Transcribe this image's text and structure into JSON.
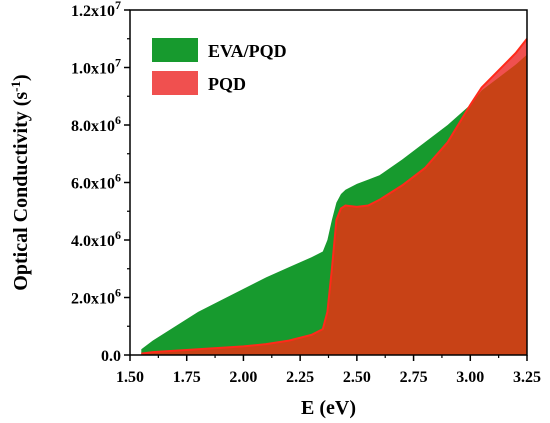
{
  "chart_data": {
    "type": "area",
    "xlabel": "E (eV)",
    "ylabel": {
      "main": "Optical Conductivity (s",
      "sup": "-1",
      "close": ")"
    },
    "xlim": [
      1.5,
      3.25
    ],
    "ylim": [
      0,
      12000000
    ],
    "x_ticks": [
      {
        "value": 1.5,
        "label": "1.50"
      },
      {
        "value": 1.75,
        "label": "1.75"
      },
      {
        "value": 2.0,
        "label": "2.00"
      },
      {
        "value": 2.25,
        "label": "2.25"
      },
      {
        "value": 2.5,
        "label": "2.50"
      },
      {
        "value": 2.75,
        "label": "2.75"
      },
      {
        "value": 3.0,
        "label": "3.00"
      },
      {
        "value": 3.25,
        "label": "3.25"
      }
    ],
    "y_ticks": [
      {
        "value": 0,
        "mantissa": "0.0",
        "exp": ""
      },
      {
        "value": 2000000,
        "mantissa": "2.0x10",
        "exp": "6"
      },
      {
        "value": 4000000,
        "mantissa": "4.0x10",
        "exp": "6"
      },
      {
        "value": 6000000,
        "mantissa": "6.0x10",
        "exp": "6"
      },
      {
        "value": 8000000,
        "mantissa": "8.0x10",
        "exp": "6"
      },
      {
        "value": 10000000,
        "mantissa": "1.0x10",
        "exp": "7"
      },
      {
        "value": 12000000,
        "mantissa": "1.2x10",
        "exp": "7"
      }
    ],
    "legend_position": "top-left",
    "series": [
      {
        "name": "EVA/PQD",
        "color": "#179a2e",
        "x": [
          1.55,
          1.6,
          1.7,
          1.8,
          1.9,
          2.0,
          2.1,
          2.2,
          2.3,
          2.35,
          2.37,
          2.39,
          2.41,
          2.43,
          2.45,
          2.5,
          2.55,
          2.6,
          2.7,
          2.8,
          2.9,
          3.0,
          3.05,
          3.1,
          3.2,
          3.25
        ],
        "values": [
          200000,
          500000,
          1000000,
          1500000,
          1900000,
          2300000,
          2700000,
          3050000,
          3400000,
          3600000,
          4000000,
          4700000,
          5300000,
          5600000,
          5750000,
          5950000,
          6100000,
          6250000,
          6800000,
          7400000,
          8000000,
          8700000,
          9200000,
          9500000,
          10100000,
          10450000
        ]
      },
      {
        "name": "PQD",
        "color": "#f0504f",
        "x": [
          1.55,
          1.6,
          1.8,
          2.0,
          2.1,
          2.2,
          2.3,
          2.35,
          2.37,
          2.39,
          2.41,
          2.43,
          2.45,
          2.5,
          2.55,
          2.6,
          2.7,
          2.8,
          2.9,
          3.0,
          3.05,
          3.1,
          3.2,
          3.25
        ],
        "values": [
          50000,
          100000,
          200000,
          300000,
          380000,
          500000,
          700000,
          900000,
          1500000,
          3000000,
          4700000,
          5100000,
          5200000,
          5150000,
          5200000,
          5400000,
          5900000,
          6500000,
          7400000,
          8700000,
          9300000,
          9700000,
          10500000,
          11000000
        ]
      }
    ],
    "overlap_color": "#c84216"
  }
}
